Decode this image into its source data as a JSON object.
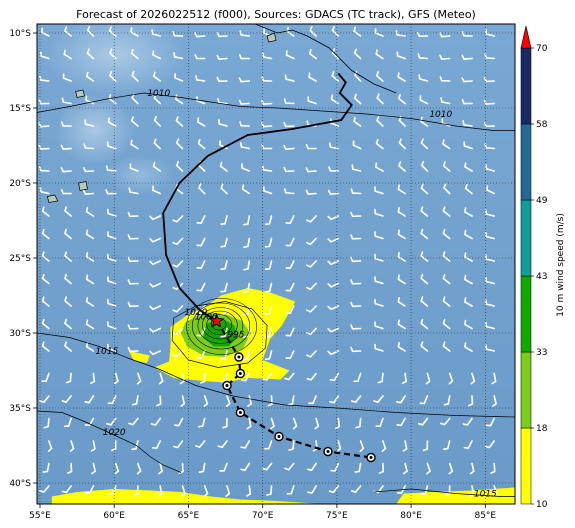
{
  "title": "Forecast of 2026022512 (f000), Sources: GDACS (TC track), GFS (Meteo)",
  "map": {
    "lon_range": [
      54.8,
      87.0
    ],
    "lat_range": [
      -41.4,
      -9.4
    ],
    "lon_ticks": [
      {
        "value": 55,
        "label": "55°E"
      },
      {
        "value": 60,
        "label": "60°E"
      },
      {
        "value": 65,
        "label": "65°E"
      },
      {
        "value": 70,
        "label": "70°E"
      },
      {
        "value": 75,
        "label": "75°E"
      },
      {
        "value": 80,
        "label": "80°E"
      },
      {
        "value": 85,
        "label": "85°E"
      }
    ],
    "lat_ticks": [
      {
        "value": -10,
        "label": "10°S"
      },
      {
        "value": -15,
        "label": "15°S"
      },
      {
        "value": -20,
        "label": "20°S"
      },
      {
        "value": -25,
        "label": "25°S"
      },
      {
        "value": -30,
        "label": "30°S"
      },
      {
        "value": -35,
        "label": "35°S"
      },
      {
        "value": -40,
        "label": "40°S"
      }
    ],
    "grid": "dotted",
    "ocean_color": "#6ea0cc"
  },
  "colorbar": {
    "label": "10 m wind speed (m/s)",
    "levels": [
      {
        "value": 10,
        "label": "10",
        "color": "#ffff00"
      },
      {
        "value": 18,
        "label": "18",
        "color": "#7ccd1a"
      },
      {
        "value": 33,
        "label": "33",
        "color": "#12a800"
      },
      {
        "value": 43,
        "label": "43",
        "color": "#0e9e9c"
      },
      {
        "value": 49,
        "label": "49",
        "color": "#236a96"
      },
      {
        "value": 58,
        "label": "58",
        "color": "#1a2a66"
      },
      {
        "value": 70,
        "label": "70",
        "color": "#ff0000"
      }
    ]
  },
  "isobar_labels": [
    {
      "text": "1010",
      "lon": 63.0,
      "lat": -14.2
    },
    {
      "text": "1010",
      "lon": 82.0,
      "lat": -15.6
    },
    {
      "text": "1010",
      "lon": 65.5,
      "lat": -28.8
    },
    {
      "text": "1015",
      "lon": 59.5,
      "lat": -31.4
    },
    {
      "text": "1020",
      "lon": 60.0,
      "lat": -36.8
    },
    {
      "text": "1015",
      "lon": 85.0,
      "lat": -40.9
    },
    {
      "text": "1000",
      "lon": 66.2,
      "lat": -29.1
    },
    {
      "text": "995",
      "lon": 68.2,
      "lat": -30.3
    }
  ],
  "storm": {
    "name": "",
    "lon": 66.9,
    "lat": -29.2,
    "marker": "star-icon"
  },
  "track_history": [
    [
      75.1,
      -12.7
    ],
    [
      75.6,
      -13.3
    ],
    [
      75.2,
      -14.0
    ],
    [
      76.0,
      -14.8
    ],
    [
      75.3,
      -15.8
    ],
    [
      72.0,
      -16.4
    ],
    [
      69.0,
      -16.8
    ],
    [
      66.3,
      -18.2
    ],
    [
      64.4,
      -20.0
    ],
    [
      63.3,
      -22.0
    ],
    [
      63.5,
      -24.8
    ],
    [
      64.4,
      -27.0
    ],
    [
      65.8,
      -28.5
    ],
    [
      66.9,
      -29.2
    ]
  ],
  "track_forecast": [
    [
      66.9,
      -29.2
    ],
    [
      68.4,
      -31.6
    ],
    [
      68.5,
      -32.7
    ],
    [
      67.6,
      -33.5
    ],
    [
      68.5,
      -35.3
    ],
    [
      71.1,
      -36.9
    ],
    [
      74.4,
      -37.9
    ],
    [
      77.3,
      -38.3
    ]
  ],
  "forecast_points": [
    [
      68.4,
      -31.6
    ],
    [
      68.5,
      -32.7
    ],
    [
      67.6,
      -33.5
    ],
    [
      68.5,
      -35.3
    ],
    [
      71.1,
      -36.9
    ],
    [
      74.4,
      -37.9
    ],
    [
      77.3,
      -38.3
    ]
  ]
}
